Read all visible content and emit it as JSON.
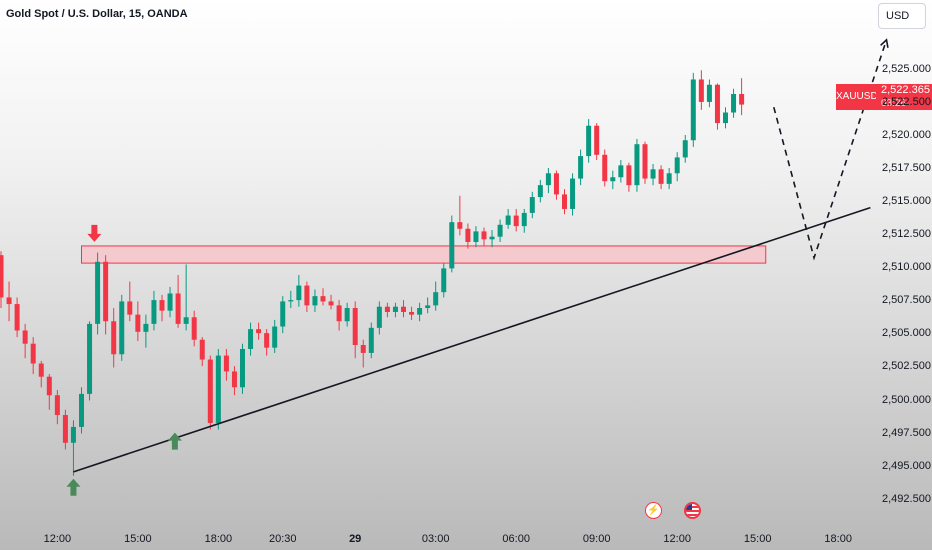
{
  "header": {
    "title": "Gold Spot / U.S. Dollar, 15, OANDA",
    "currency": "USD"
  },
  "price_tag": {
    "symbol": "XAUUSD",
    "price": "2,522.365",
    "countdown": "03:26"
  },
  "colors": {
    "up": "#089981",
    "down": "#f23645",
    "zone_fill": "#f7c5cb",
    "zone_border": "#f23645",
    "line": "#131722",
    "arrow_up": "#4a8a5a",
    "arrow_down": "#f23645"
  },
  "chart_data": {
    "type": "candlestick",
    "ylim": [
      2490.5,
      2528.5
    ],
    "y_ticks": [
      "2,525.000",
      "2,522.500",
      "2,520.000",
      "2,517.500",
      "2,515.000",
      "2,512.500",
      "2,510.000",
      "2,507.500",
      "2,505.000",
      "2,502.500",
      "2,500.000",
      "2,497.500",
      "2,495.000",
      "2,492.500"
    ],
    "y_tick_values": [
      2525,
      2522.5,
      2520,
      2517.5,
      2515,
      2512.5,
      2510,
      2507.5,
      2505,
      2502.5,
      2500,
      2497.5,
      2495,
      2492.5
    ],
    "x_ticks": [
      "12:00",
      "15:00",
      "18:00",
      "20:30",
      "29",
      "03:00",
      "06:00",
      "09:00",
      "12:00",
      "15:00",
      "18:00"
    ],
    "x_tick_bars": [
      7,
      17,
      27,
      35,
      44,
      54,
      64,
      74,
      84,
      94,
      104
    ],
    "x_tick_bold": [
      false,
      false,
      false,
      false,
      true,
      false,
      false,
      false,
      false,
      false,
      false
    ],
    "bar_spacing_per_tick": 10,
    "candles": [
      [
        2511,
        2511.3,
        2507,
        2507.8
      ],
      [
        2507.8,
        2509,
        2506,
        2507.3
      ],
      [
        2507.3,
        2507.8,
        2504.8,
        2505.3
      ],
      [
        2505.3,
        2505.8,
        2503.2,
        2504.3
      ],
      [
        2504.3,
        2504.8,
        2502,
        2502.8
      ],
      [
        2502.8,
        2503,
        2501,
        2501.8
      ],
      [
        2501.8,
        2502,
        2499.3,
        2500.4
      ],
      [
        2500.4,
        2500.8,
        2498.2,
        2498.9
      ],
      [
        2498.9,
        2499.3,
        2496.3,
        2496.8
      ],
      [
        2496.8,
        2498.5,
        2494.3,
        2498
      ],
      [
        2498,
        2501,
        2497.5,
        2500.5
      ],
      [
        2500.5,
        2506,
        2500,
        2505.8
      ],
      [
        2505.8,
        2511.2,
        2505,
        2510.5
      ],
      [
        2510.5,
        2511,
        2505,
        2506
      ],
      [
        2506,
        2507,
        2502.5,
        2503.5
      ],
      [
        2503.5,
        2508,
        2503,
        2507.5
      ],
      [
        2507.5,
        2509,
        2506,
        2506.5
      ],
      [
        2506.5,
        2507.5,
        2504.5,
        2505.2
      ],
      [
        2505.2,
        2506.5,
        2504,
        2505.8
      ],
      [
        2505.8,
        2508.3,
        2505.3,
        2507.6
      ],
      [
        2507.6,
        2508,
        2506,
        2506.8
      ],
      [
        2506.8,
        2508.6,
        2506.3,
        2508.1
      ],
      [
        2508.1,
        2509.5,
        2505.5,
        2505.8
      ],
      [
        2505.8,
        2510.3,
        2505.3,
        2506.3
      ],
      [
        2506.3,
        2506.8,
        2504.1,
        2504.6
      ],
      [
        2504.6,
        2504.8,
        2502.6,
        2503.1
      ],
      [
        2503.1,
        2503.4,
        2497.8,
        2498.3
      ],
      [
        2498.3,
        2503.9,
        2497.8,
        2503.4
      ],
      [
        2503.4,
        2503.9,
        2501.5,
        2502.2
      ],
      [
        2502.2,
        2502.6,
        2500.4,
        2501
      ],
      [
        2501,
        2504.3,
        2500.5,
        2503.9
      ],
      [
        2503.9,
        2505.9,
        2503.4,
        2505.4
      ],
      [
        2505.4,
        2505.9,
        2504.6,
        2505.1
      ],
      [
        2505.1,
        2505.4,
        2503.4,
        2504
      ],
      [
        2504,
        2506.1,
        2503.6,
        2505.6
      ],
      [
        2505.6,
        2507.9,
        2505.1,
        2507.5
      ],
      [
        2507.5,
        2508.3,
        2507,
        2507.6
      ],
      [
        2507.6,
        2509.5,
        2507.1,
        2508.7
      ],
      [
        2508.7,
        2509,
        2506.7,
        2507.2
      ],
      [
        2507.2,
        2508.4,
        2506.7,
        2507.9
      ],
      [
        2507.9,
        2508.5,
        2507.2,
        2507.5
      ],
      [
        2507.5,
        2508,
        2506.9,
        2507.2
      ],
      [
        2507.2,
        2507.6,
        2505.3,
        2506
      ],
      [
        2506,
        2507.4,
        2505.6,
        2507
      ],
      [
        2507,
        2507.5,
        2503.2,
        2504.2
      ],
      [
        2504.2,
        2504.6,
        2502.5,
        2503.6
      ],
      [
        2503.6,
        2505.9,
        2503.2,
        2505.5
      ],
      [
        2505.5,
        2507.5,
        2505,
        2507.1
      ],
      [
        2507.1,
        2507.4,
        2506.3,
        2506.7
      ],
      [
        2506.7,
        2507.4,
        2506.3,
        2507.1
      ],
      [
        2507.1,
        2507.6,
        2506.3,
        2506.7
      ],
      [
        2506.7,
        2507.1,
        2506.1,
        2506.5
      ],
      [
        2506.5,
        2507.4,
        2506,
        2507
      ],
      [
        2507,
        2507.8,
        2506.6,
        2507.2
      ],
      [
        2507.2,
        2509,
        2506.8,
        2508.2
      ],
      [
        2508.2,
        2510.4,
        2507.8,
        2510
      ],
      [
        2510,
        2514,
        2509.7,
        2513.5
      ],
      [
        2513.5,
        2515.5,
        2512.5,
        2513
      ],
      [
        2513,
        2513.4,
        2511.5,
        2512
      ],
      [
        2512,
        2513.2,
        2511.6,
        2512.8
      ],
      [
        2512.8,
        2513.1,
        2511.7,
        2512.2
      ],
      [
        2512.2,
        2512.9,
        2511.6,
        2512.4
      ],
      [
        2512.4,
        2513.7,
        2512,
        2513.3
      ],
      [
        2513.3,
        2514.5,
        2513,
        2514
      ],
      [
        2514,
        2514.5,
        2512.8,
        2513.2
      ],
      [
        2513.2,
        2514.5,
        2512.7,
        2514.2
      ],
      [
        2514.2,
        2515.8,
        2513.8,
        2515.4
      ],
      [
        2515.4,
        2516.7,
        2515,
        2516.3
      ],
      [
        2516.3,
        2517.6,
        2515.7,
        2517.2
      ],
      [
        2517.2,
        2517.4,
        2515.2,
        2515.6
      ],
      [
        2515.6,
        2516,
        2514.1,
        2514.5
      ],
      [
        2514.5,
        2517.2,
        2514,
        2516.8
      ],
      [
        2516.8,
        2519,
        2516.3,
        2518.5
      ],
      [
        2518.5,
        2521.3,
        2518,
        2520.8
      ],
      [
        2520.8,
        2521,
        2518.2,
        2518.6
      ],
      [
        2518.6,
        2519,
        2516.2,
        2516.6
      ],
      [
        2516.6,
        2517.4,
        2516,
        2516.9
      ],
      [
        2516.9,
        2518.2,
        2516.5,
        2517.8
      ],
      [
        2517.8,
        2518,
        2515.8,
        2516.3
      ],
      [
        2516.3,
        2519.8,
        2515.8,
        2519.4
      ],
      [
        2519.4,
        2519.6,
        2516.4,
        2516.8
      ],
      [
        2516.8,
        2517.9,
        2516.3,
        2517.5
      ],
      [
        2517.5,
        2517.8,
        2516,
        2516.4
      ],
      [
        2516.4,
        2517.6,
        2516,
        2517.2
      ],
      [
        2517.2,
        2518.8,
        2516.6,
        2518.4
      ],
      [
        2518.4,
        2520.1,
        2518,
        2519.7
      ],
      [
        2519.7,
        2524.8,
        2519.2,
        2524.3
      ],
      [
        2524.3,
        2525,
        2522,
        2522.6
      ],
      [
        2522.6,
        2524.3,
        2522.2,
        2523.9
      ],
      [
        2523.9,
        2524,
        2520.5,
        2521
      ],
      [
        2521,
        2522.2,
        2520.6,
        2521.8
      ],
      [
        2521.8,
        2523.6,
        2521.4,
        2523.2
      ],
      [
        2523.2,
        2524.4,
        2521.6,
        2522.4
      ]
    ],
    "resistance_zone": [
      2510.4,
      2511.7
    ],
    "trendline": [
      [
        9,
        2494.6
      ],
      [
        108,
        2514.6
      ]
    ],
    "projection": [
      [
        96,
        2522.2
      ],
      [
        101,
        2510.8
      ],
      [
        110,
        2527.3
      ]
    ]
  },
  "events": [
    {
      "name": "bolt"
    },
    {
      "name": "us-flag"
    }
  ]
}
